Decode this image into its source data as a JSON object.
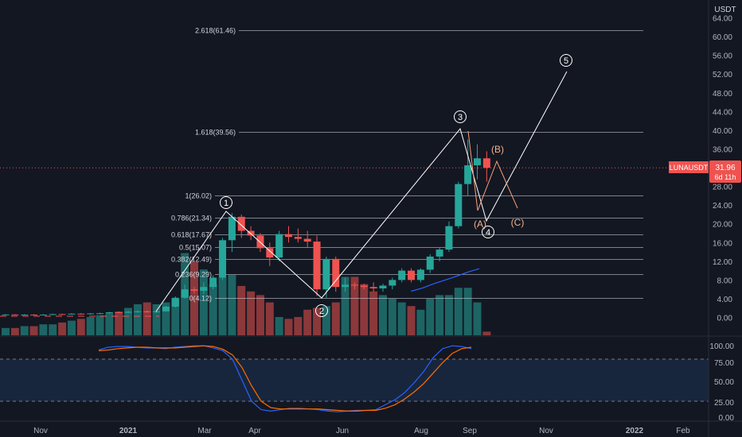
{
  "symbol_badge": "LUNAUSDT",
  "currency": "USDT",
  "last_price": "31.96",
  "countdown": "6d 11h",
  "colors": {
    "background": "#131722",
    "up": "#26a69a",
    "down": "#ef5350",
    "text": "#d1d4dc",
    "axis_text": "#b2b5be",
    "fib_line": "#d1d4dc",
    "wave_line": "#ffffff",
    "abc_line": "#f9a17a",
    "abc_text": "#f3b08a",
    "ma_line": "#2962ff",
    "stoch_k": "#2962ff",
    "stoch_d": "#ff6d00",
    "stoch_band": "#1e3a5f",
    "price_line": "#ef5350"
  },
  "price_axis_labels": [
    "64.00",
    "60.00",
    "56.00",
    "52.00",
    "48.00",
    "44.00",
    "40.00",
    "36.00",
    "32.00",
    "28.00",
    "24.00",
    "20.00",
    "16.00",
    "12.00",
    "8.00",
    "4.00",
    "0.00"
  ],
  "stoch_axis_labels": [
    "100.00",
    "75.00",
    "50.00",
    "25.00",
    "0.00"
  ],
  "time_axis_labels": [
    "Nov",
    "2021",
    "Mar",
    "Apr",
    "Jun",
    "Aug",
    "Sep",
    "Nov",
    "2022",
    "Feb"
  ],
  "fib_levels": [
    {
      "label": "2.618(61.46)",
      "price": 61.46
    },
    {
      "label": "1.618(39.56)",
      "price": 39.56
    },
    {
      "label": "1(26.02)",
      "price": 26.02
    },
    {
      "label": "0.786(21.34)",
      "price": 21.34
    },
    {
      "label": "0.618(17.67)",
      "price": 17.67
    },
    {
      "label": "0.5(15.07)",
      "price": 15.07
    },
    {
      "label": "0.382(12.49)",
      "price": 12.49
    },
    {
      "label": "0.236(9.29)",
      "price": 9.29
    },
    {
      "label": "0(4.12)",
      "price": 4.12
    }
  ],
  "wave_labels": [
    "1",
    "2",
    "3",
    "4",
    "5"
  ],
  "abc_labels": [
    "(A)",
    "(B)",
    "(C)"
  ],
  "chart_data": {
    "type": "candlestick",
    "symbol": "LUNAUSDT",
    "timeframe": "weekly",
    "y_range": [
      -2,
      66
    ],
    "candles": [
      {
        "o": 0.6,
        "h": 0.7,
        "l": 0.5,
        "c": 0.62
      },
      {
        "o": 0.62,
        "h": 0.7,
        "l": 0.5,
        "c": 0.58
      },
      {
        "o": 0.58,
        "h": 0.7,
        "l": 0.5,
        "c": 0.6
      },
      {
        "o": 0.6,
        "h": 0.7,
        "l": 0.5,
        "c": 0.57
      },
      {
        "o": 0.57,
        "h": 0.7,
        "l": 0.5,
        "c": 0.6
      },
      {
        "o": 0.6,
        "h": 0.8,
        "l": 0.5,
        "c": 0.7
      },
      {
        "o": 0.7,
        "h": 0.8,
        "l": 0.6,
        "c": 0.68
      },
      {
        "o": 0.68,
        "h": 0.9,
        "l": 0.6,
        "c": 0.8
      },
      {
        "o": 0.8,
        "h": 0.9,
        "l": 0.6,
        "c": 0.75
      },
      {
        "o": 0.75,
        "h": 0.9,
        "l": 0.6,
        "c": 0.85
      },
      {
        "o": 0.85,
        "h": 1.0,
        "l": 0.7,
        "c": 0.9
      },
      {
        "o": 0.9,
        "h": 1.2,
        "l": 0.8,
        "c": 1.1
      },
      {
        "o": 1.1,
        "h": 1.3,
        "l": 0.9,
        "c": 1.0
      },
      {
        "o": 1.0,
        "h": 1.4,
        "l": 0.9,
        "c": 1.2
      },
      {
        "o": 1.2,
        "h": 1.5,
        "l": 1.0,
        "c": 1.3
      },
      {
        "o": 1.3,
        "h": 1.5,
        "l": 1.0,
        "c": 1.1
      },
      {
        "o": 1.1,
        "h": 1.4,
        "l": 0.9,
        "c": 1.3
      },
      {
        "o": 1.3,
        "h": 2.5,
        "l": 1.2,
        "c": 2.3
      },
      {
        "o": 2.3,
        "h": 4.5,
        "l": 2.1,
        "c": 4.2
      },
      {
        "o": 4.2,
        "h": 7.0,
        "l": 4.0,
        "c": 6.0
      },
      {
        "o": 6.0,
        "h": 6.5,
        "l": 5.2,
        "c": 5.7
      },
      {
        "o": 5.7,
        "h": 7.5,
        "l": 5.0,
        "c": 6.5
      },
      {
        "o": 6.5,
        "h": 9.0,
        "l": 6.0,
        "c": 8.5
      },
      {
        "o": 8.5,
        "h": 17.0,
        "l": 8.0,
        "c": 16.5
      },
      {
        "o": 16.5,
        "h": 22.3,
        "l": 14.0,
        "c": 21.5
      },
      {
        "o": 21.5,
        "h": 22.0,
        "l": 17.0,
        "c": 18.5
      },
      {
        "o": 18.5,
        "h": 19.5,
        "l": 16.5,
        "c": 17.5
      },
      {
        "o": 17.5,
        "h": 18.0,
        "l": 14.0,
        "c": 14.8
      },
      {
        "o": 14.8,
        "h": 16.0,
        "l": 11.0,
        "c": 12.8
      },
      {
        "o": 12.8,
        "h": 18.5,
        "l": 12.0,
        "c": 17.8
      },
      {
        "o": 17.8,
        "h": 19.5,
        "l": 16.0,
        "c": 17.2
      },
      {
        "o": 17.2,
        "h": 19.0,
        "l": 16.0,
        "c": 16.8
      },
      {
        "o": 16.8,
        "h": 18.5,
        "l": 15.0,
        "c": 16.2
      },
      {
        "o": 16.2,
        "h": 17.5,
        "l": 4.6,
        "c": 6.0
      },
      {
        "o": 6.0,
        "h": 13.0,
        "l": 4.12,
        "c": 12.5
      },
      {
        "o": 12.5,
        "h": 13.0,
        "l": 5.5,
        "c": 6.5
      },
      {
        "o": 6.5,
        "h": 8.5,
        "l": 5.5,
        "c": 7.0
      },
      {
        "o": 7.0,
        "h": 7.5,
        "l": 6.0,
        "c": 6.8
      },
      {
        "o": 6.8,
        "h": 7.2,
        "l": 6.0,
        "c": 6.5
      },
      {
        "o": 6.5,
        "h": 7.5,
        "l": 5.5,
        "c": 6.2
      },
      {
        "o": 6.2,
        "h": 7.2,
        "l": 5.5,
        "c": 6.8
      },
      {
        "o": 6.8,
        "h": 8.5,
        "l": 6.0,
        "c": 8.0
      },
      {
        "o": 8.0,
        "h": 10.5,
        "l": 7.5,
        "c": 10.0
      },
      {
        "o": 10.0,
        "h": 10.5,
        "l": 7.5,
        "c": 8.0
      },
      {
        "o": 8.0,
        "h": 10.5,
        "l": 7.5,
        "c": 10.2
      },
      {
        "o": 10.2,
        "h": 13.5,
        "l": 9.5,
        "c": 13.0
      },
      {
        "o": 13.0,
        "h": 15.0,
        "l": 12.0,
        "c": 14.5
      },
      {
        "o": 14.5,
        "h": 20.5,
        "l": 14.0,
        "c": 19.5
      },
      {
        "o": 19.5,
        "h": 29.0,
        "l": 19.0,
        "c": 28.5
      },
      {
        "o": 28.5,
        "h": 38.0,
        "l": 26.0,
        "c": 32.5
      },
      {
        "o": 32.5,
        "h": 37.0,
        "l": 29.5,
        "c": 34.0
      },
      {
        "o": 34.0,
        "h": 35.5,
        "l": 29.0,
        "c": 31.96
      }
    ],
    "moving_average": [
      5.6,
      6.3,
      7.2,
      8.0,
      8.8,
      9.7,
      10.4
    ],
    "volume": [
      4,
      4,
      5,
      5,
      6,
      6,
      7,
      8,
      9,
      10,
      11,
      12,
      13,
      15,
      17,
      18,
      17,
      18,
      20,
      45,
      40,
      36,
      28,
      32,
      33,
      27,
      24,
      22,
      18,
      10,
      9,
      10,
      14,
      15,
      16,
      18,
      32,
      32,
      28,
      24,
      22,
      20,
      18,
      16,
      14,
      20,
      22,
      22,
      26,
      26,
      18,
      2
    ],
    "stochastic": {
      "k": [
        93,
        97,
        98,
        98,
        97,
        96,
        96,
        95,
        97,
        98,
        99,
        99,
        96,
        92,
        80,
        50,
        20,
        8,
        6,
        8,
        10,
        10,
        9,
        8,
        6,
        5,
        6,
        7,
        7,
        8,
        15,
        22,
        32,
        46,
        62,
        82,
        95,
        99,
        98,
        95
      ],
      "d": [
        92,
        93,
        95,
        96,
        97,
        97,
        96,
        96,
        96,
        97,
        98,
        99,
        98,
        94,
        86,
        68,
        42,
        20,
        11,
        9,
        9,
        9,
        9,
        9,
        8,
        7,
        6,
        6,
        7,
        7,
        10,
        15,
        23,
        33,
        45,
        60,
        75,
        88,
        95,
        97
      ],
      "levels": [
        20,
        80
      ],
      "y_range": [
        0,
        100
      ]
    }
  }
}
